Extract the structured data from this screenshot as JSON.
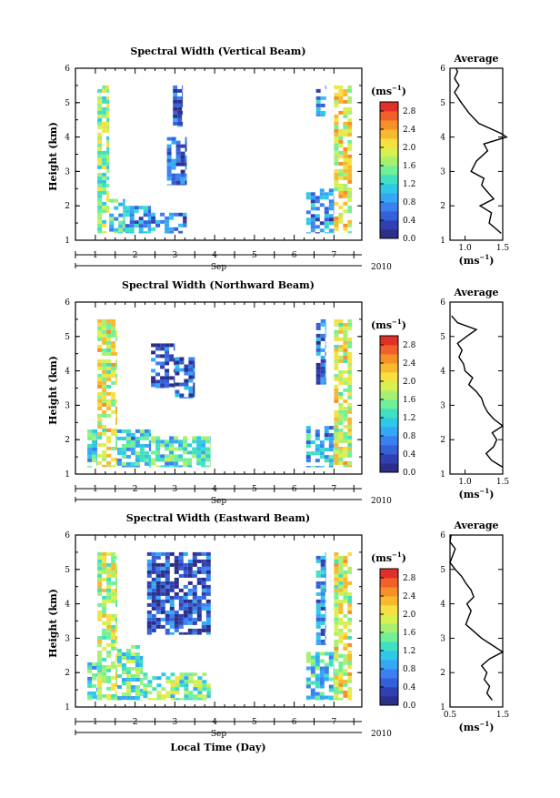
{
  "figure": {
    "colorbar_unit": "(ms⁻¹)",
    "colorbar_unit_base": "(ms",
    "colorbar_unit_exp": "−1",
    "colorbar_ticks": [
      "0.0",
      "0.4",
      "0.8",
      "1.2",
      "1.6",
      "2.0",
      "2.4",
      "2.8"
    ],
    "colorbar_colors": [
      "#2b2f8a",
      "#3040b0",
      "#3460d8",
      "#3a80f0",
      "#35a8f5",
      "#30c8e8",
      "#40e0c0",
      "#70f098",
      "#a8f070",
      "#d8f050",
      "#f8e040",
      "#f8b830",
      "#f89028",
      "#f06028",
      "#e03028"
    ],
    "x_tick_labels": [
      "1",
      "2",
      "3",
      "4",
      "5",
      "6",
      "7"
    ],
    "month_label": "Sep",
    "year_label": "2010",
    "ylabel": "Height (km)",
    "y_tick_labels": [
      "1",
      "2",
      "3",
      "4",
      "5",
      "6"
    ],
    "average_title": "Average",
    "avg_unit_base": "(ms",
    "avg_unit_exp": "−1",
    "xlabel_bottom": "Local Time (Day)"
  },
  "chart_data": [
    {
      "type": "heatmap",
      "title": "Spectral Width (Vertical Beam)",
      "xlabel": "",
      "ylabel": "Height (km)",
      "xlim": [
        0.5,
        7.7
      ],
      "ylim": [
        1,
        6
      ],
      "colorbar_range": [
        0.0,
        3.0
      ],
      "blocks": [
        {
          "x": [
            1.05,
            1.35
          ],
          "y": [
            1.2,
            5.5
          ],
          "v": 1.6
        },
        {
          "x": [
            1.35,
            1.75
          ],
          "y": [
            1.2,
            2.2
          ],
          "v": 1.1
        },
        {
          "x": [
            1.75,
            2.4
          ],
          "y": [
            1.2,
            2.0
          ],
          "v": 0.9
        },
        {
          "x": [
            2.4,
            3.3
          ],
          "y": [
            1.2,
            1.8
          ],
          "v": 0.7
        },
        {
          "x": [
            2.8,
            3.3
          ],
          "y": [
            2.6,
            4.0
          ],
          "v": 0.5
        },
        {
          "x": [
            2.95,
            3.2
          ],
          "y": [
            4.3,
            5.5
          ],
          "v": 0.4
        },
        {
          "x": [
            6.3,
            7.0
          ],
          "y": [
            1.2,
            2.5
          ],
          "v": 0.7
        },
        {
          "x": [
            6.55,
            6.8
          ],
          "y": [
            4.6,
            5.5
          ],
          "v": 0.9
        },
        {
          "x": [
            7.0,
            7.45
          ],
          "y": [
            1.2,
            5.5
          ],
          "v": 2.0
        }
      ],
      "average_profile": {
        "xlim": [
          0.8,
          1.5
        ],
        "x_ticks": [
          "1.0",
          "1.5"
        ],
        "height": [
          1.2,
          1.5,
          1.8,
          2.0,
          2.2,
          2.4,
          2.6,
          2.8,
          3.0,
          3.3,
          3.6,
          3.8,
          4.0,
          4.1,
          4.2,
          4.4,
          4.7,
          5.0,
          5.3,
          5.5,
          5.7,
          5.9,
          6.0
        ],
        "values": [
          1.48,
          1.32,
          1.35,
          1.2,
          1.38,
          1.3,
          1.22,
          1.25,
          1.08,
          1.15,
          1.3,
          1.25,
          1.55,
          1.48,
          1.38,
          1.18,
          1.05,
          0.95,
          0.86,
          0.92,
          0.86,
          0.9,
          0.88
        ]
      }
    },
    {
      "type": "heatmap",
      "title": "Spectral Width (Northward Beam)",
      "xlabel": "",
      "ylabel": "Height (km)",
      "xlim": [
        0.5,
        7.7
      ],
      "ylim": [
        1,
        6
      ],
      "colorbar_range": [
        0.0,
        3.0
      ],
      "blocks": [
        {
          "x": [
            0.8,
            1.05
          ],
          "y": [
            1.2,
            2.3
          ],
          "v": 1.2
        },
        {
          "x": [
            1.05,
            1.55
          ],
          "y": [
            1.2,
            5.5
          ],
          "v": 1.9
        },
        {
          "x": [
            1.55,
            2.4
          ],
          "y": [
            1.2,
            2.3
          ],
          "v": 1.1
        },
        {
          "x": [
            2.4,
            3.9
          ],
          "y": [
            1.2,
            2.1
          ],
          "v": 1.3
        },
        {
          "x": [
            2.4,
            3.0
          ],
          "y": [
            3.5,
            4.8
          ],
          "v": 0.4
        },
        {
          "x": [
            3.0,
            3.5
          ],
          "y": [
            3.2,
            4.4
          ],
          "v": 0.5
        },
        {
          "x": [
            6.3,
            7.0
          ],
          "y": [
            1.2,
            2.4
          ],
          "v": 0.9
        },
        {
          "x": [
            6.55,
            6.8
          ],
          "y": [
            3.6,
            5.5
          ],
          "v": 0.6
        },
        {
          "x": [
            7.0,
            7.45
          ],
          "y": [
            1.2,
            5.5
          ],
          "v": 1.9
        }
      ],
      "average_profile": {
        "xlim": [
          0.8,
          1.5
        ],
        "x_ticks": [
          "1.0",
          "1.5"
        ],
        "height": [
          1.2,
          1.4,
          1.6,
          1.8,
          2.0,
          2.2,
          2.4,
          2.6,
          2.8,
          3.0,
          3.2,
          3.4,
          3.6,
          3.8,
          4.0,
          4.2,
          4.4,
          4.6,
          4.8,
          5.0,
          5.2,
          5.4,
          5.6
        ],
        "values": [
          1.5,
          1.35,
          1.28,
          1.38,
          1.42,
          1.36,
          1.5,
          1.38,
          1.3,
          1.25,
          1.22,
          1.15,
          1.05,
          1.1,
          1.0,
          0.98,
          0.92,
          0.96,
          0.9,
          1.02,
          1.15,
          0.9,
          0.82
        ]
      }
    },
    {
      "type": "heatmap",
      "title": "Spectral Width (Eastward Beam)",
      "xlabel": "Local Time (Day)",
      "ylabel": "Height (km)",
      "xlim": [
        0.5,
        7.7
      ],
      "ylim": [
        1,
        6
      ],
      "colorbar_range": [
        0.0,
        3.0
      ],
      "blocks": [
        {
          "x": [
            0.8,
            1.05
          ],
          "y": [
            1.2,
            2.3
          ],
          "v": 1.2
        },
        {
          "x": [
            1.05,
            1.55
          ],
          "y": [
            1.2,
            5.5
          ],
          "v": 1.8
        },
        {
          "x": [
            1.55,
            2.2
          ],
          "y": [
            1.2,
            2.8
          ],
          "v": 1.4
        },
        {
          "x": [
            2.2,
            3.9
          ],
          "y": [
            1.2,
            2.0
          ],
          "v": 1.5
        },
        {
          "x": [
            2.3,
            3.9
          ],
          "y": [
            3.1,
            5.5
          ],
          "v": 0.4
        },
        {
          "x": [
            6.3,
            7.0
          ],
          "y": [
            1.2,
            2.6
          ],
          "v": 1.2
        },
        {
          "x": [
            6.55,
            6.8
          ],
          "y": [
            2.8,
            5.5
          ],
          "v": 0.8
        },
        {
          "x": [
            7.0,
            7.45
          ],
          "y": [
            1.2,
            5.5
          ],
          "v": 1.9
        }
      ],
      "average_profile": {
        "xlim": [
          0.5,
          1.5
        ],
        "x_ticks": [
          "0.5",
          "1.5"
        ],
        "height": [
          1.2,
          1.4,
          1.6,
          1.8,
          2.0,
          2.2,
          2.4,
          2.6,
          2.8,
          3.0,
          3.2,
          3.4,
          3.6,
          3.8,
          4.0,
          4.2,
          4.4,
          4.6,
          4.8,
          5.0,
          5.2,
          5.4,
          5.6,
          5.8,
          6.0
        ],
        "values": [
          1.3,
          1.2,
          1.25,
          1.15,
          1.2,
          1.1,
          1.25,
          1.5,
          1.3,
          1.1,
          0.95,
          0.8,
          0.85,
          0.9,
          0.82,
          0.95,
          0.9,
          0.8,
          0.72,
          0.6,
          0.5,
          0.55,
          0.6,
          0.5,
          0.52
        ]
      }
    }
  ]
}
